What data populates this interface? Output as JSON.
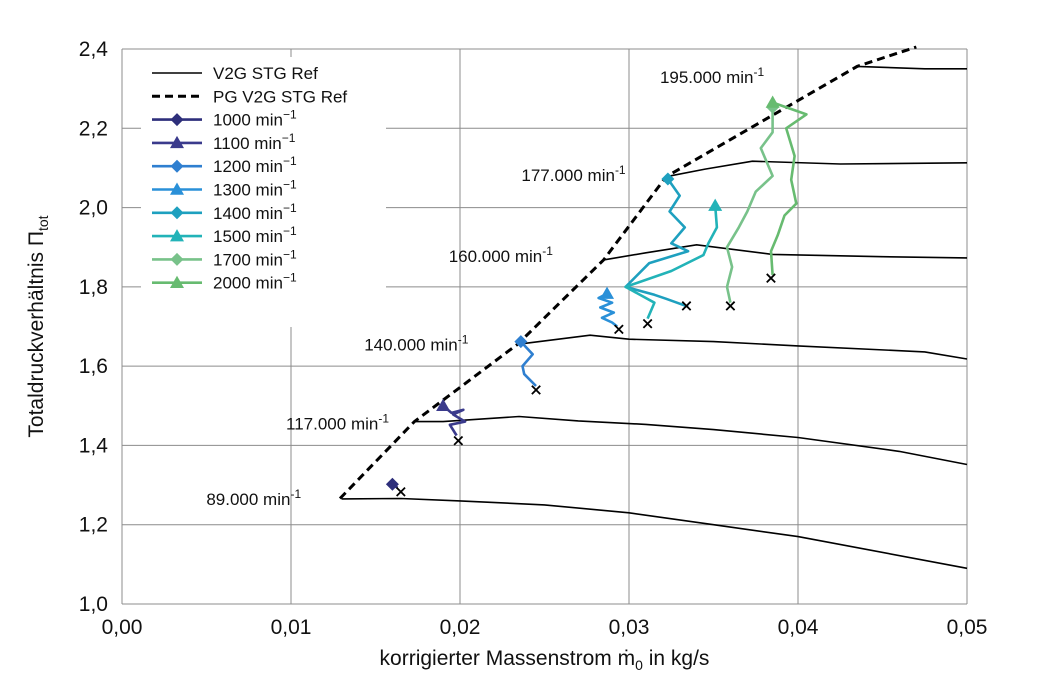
{
  "chart_data": {
    "type": "line",
    "xlabel": "korrigierter Massenstrom ṁ",
    "xlabel_sub": "0",
    "xlabel_suffix": " in kg/s",
    "ylabel": "Totaldruckverhältnis Π",
    "ylabel_sub": "tot",
    "xlim": [
      0,
      0.05
    ],
    "ylim": [
      1.0,
      2.4
    ],
    "xticks": [
      0,
      0.01,
      0.02,
      0.03,
      0.04,
      0.05
    ],
    "yticks": [
      1.0,
      1.2,
      1.4,
      1.6,
      1.8,
      2.0,
      2.2,
      2.4
    ],
    "xtick_labels": [
      "0,00",
      "0,01",
      "0,02",
      "0,03",
      "0,04",
      "0,05"
    ],
    "ytick_labels": [
      "1,0",
      "1,2",
      "1,4",
      "1,6",
      "1,8",
      "2,0",
      "2,2",
      "2,4"
    ],
    "grid": true,
    "legend_position": "top-left",
    "reference_lines": [
      {
        "speed": "89.000",
        "points": [
          [
            0.013,
            1.265
          ],
          [
            0.0165,
            1.266
          ],
          [
            0.02,
            1.26
          ],
          [
            0.025,
            1.25
          ],
          [
            0.03,
            1.23
          ],
          [
            0.035,
            1.2
          ],
          [
            0.04,
            1.17
          ],
          [
            0.05,
            1.09
          ]
        ]
      },
      {
        "speed": "117.000",
        "points": [
          [
            0.0173,
            1.46
          ],
          [
            0.019,
            1.46
          ],
          [
            0.0235,
            1.473
          ],
          [
            0.027,
            1.462
          ],
          [
            0.031,
            1.453
          ],
          [
            0.035,
            1.44
          ],
          [
            0.04,
            1.42
          ],
          [
            0.046,
            1.385
          ],
          [
            0.05,
            1.352
          ]
        ]
      },
      {
        "speed": "140.000",
        "points": [
          [
            0.0234,
            1.655
          ],
          [
            0.0277,
            1.678
          ],
          [
            0.03,
            1.668
          ],
          [
            0.035,
            1.662
          ],
          [
            0.04,
            1.651
          ],
          [
            0.0475,
            1.636
          ],
          [
            0.05,
            1.618
          ]
        ]
      },
      {
        "speed": "160.000",
        "points": [
          [
            0.0285,
            1.868
          ],
          [
            0.031,
            1.886
          ],
          [
            0.034,
            1.906
          ],
          [
            0.0385,
            1.882
          ],
          [
            0.045,
            1.876
          ],
          [
            0.05,
            1.873
          ]
        ]
      },
      {
        "speed": "177.000",
        "points": [
          [
            0.0322,
            2.078
          ],
          [
            0.0345,
            2.097
          ],
          [
            0.0373,
            2.117
          ],
          [
            0.0425,
            2.11
          ],
          [
            0.05,
            2.113
          ]
        ]
      },
      {
        "speed": "195.000",
        "points": [
          [
            0.0435,
            2.356
          ],
          [
            0.0475,
            2.35
          ],
          [
            0.05,
            2.35
          ]
        ]
      }
    ],
    "surge_line": [
      [
        0.0129,
        1.266
      ],
      [
        0.0173,
        1.46
      ],
      [
        0.0234,
        1.655
      ],
      [
        0.0285,
        1.868
      ],
      [
        0.0322,
        2.078
      ],
      [
        0.0435,
        2.356
      ],
      [
        0.047,
        2.405
      ]
    ],
    "speed_labels": [
      {
        "text": "89.000 min",
        "sup": "-1",
        "x": 0.0106,
        "y": 1.265
      },
      {
        "text": "117.000 min",
        "sup": "-1",
        "x": 0.0158,
        "y": 1.455
      },
      {
        "text": "140.000 min",
        "sup": "-1",
        "x": 0.0205,
        "y": 1.655
      },
      {
        "text": "160.000 min",
        "sup": "-1",
        "x": 0.0255,
        "y": 1.878
      },
      {
        "text": "177.000 min",
        "sup": "-1",
        "x": 0.0298,
        "y": 2.082
      },
      {
        "text": "195.000 min",
        "sup": "-1",
        "x": 0.038,
        "y": 2.33
      }
    ],
    "series": [
      {
        "name": "1000 min",
        "sup": "−1",
        "color": "#2e2f7b",
        "marker": "diamond",
        "points": [
          [
            0.016,
            1.302
          ],
          [
            0.0163,
            1.293
          ]
        ]
      },
      {
        "name": "1100 min",
        "sup": "−1",
        "color": "#3a3a8c",
        "marker": "triangle",
        "points": [
          [
            0.019,
            1.5
          ],
          [
            0.0195,
            1.482
          ],
          [
            0.0202,
            1.49
          ],
          [
            0.0196,
            1.478
          ],
          [
            0.0203,
            1.46
          ],
          [
            0.0194,
            1.452
          ],
          [
            0.0198,
            1.425
          ]
        ]
      },
      {
        "name": "1200 min",
        "sup": "−1",
        "color": "#2f7fd0",
        "marker": "diamond",
        "points": [
          [
            0.0236,
            1.662
          ],
          [
            0.0243,
            1.63
          ],
          [
            0.0237,
            1.6
          ],
          [
            0.0238,
            1.58
          ],
          [
            0.0245,
            1.55
          ]
        ]
      },
      {
        "name": "1300 min",
        "sup": "−1",
        "color": "#2a90d8",
        "marker": "triangle",
        "points": [
          [
            0.0287,
            1.783
          ],
          [
            0.0282,
            1.772
          ],
          [
            0.029,
            1.76
          ],
          [
            0.0283,
            1.748
          ],
          [
            0.0291,
            1.735
          ],
          [
            0.0284,
            1.722
          ],
          [
            0.029,
            1.71
          ],
          [
            0.0293,
            1.7
          ]
        ]
      },
      {
        "name": "1400 min",
        "sup": "−1",
        "color": "#1ea0bf",
        "marker": "diamond",
        "points": [
          [
            0.0323,
            2.072
          ],
          [
            0.033,
            2.03
          ],
          [
            0.0324,
            1.99
          ],
          [
            0.0333,
            1.95
          ],
          [
            0.0325,
            1.91
          ],
          [
            0.0335,
            1.89
          ],
          [
            0.0312,
            1.86
          ],
          [
            0.0298,
            1.8
          ],
          [
            0.0315,
            1.78
          ],
          [
            0.0322,
            1.77
          ],
          [
            0.0335,
            1.75
          ]
        ]
      },
      {
        "name": "1500 min",
        "sup": "−1",
        "color": "#22b3b8",
        "marker": "triangle",
        "points": [
          [
            0.0351,
            2.005
          ],
          [
            0.0352,
            1.95
          ],
          [
            0.0347,
            1.91
          ],
          [
            0.0344,
            1.88
          ],
          [
            0.0325,
            1.84
          ],
          [
            0.0298,
            1.8
          ],
          [
            0.0315,
            1.76
          ],
          [
            0.0311,
            1.72
          ]
        ]
      },
      {
        "name": "1700 min",
        "sup": "−1",
        "color": "#78c28a",
        "marker": "diamond",
        "points": [
          [
            0.0385,
            2.253
          ],
          [
            0.0385,
            2.19
          ],
          [
            0.0378,
            2.15
          ],
          [
            0.0385,
            2.08
          ],
          [
            0.0375,
            2.04
          ],
          [
            0.037,
            1.99
          ],
          [
            0.0365,
            1.95
          ],
          [
            0.0358,
            1.9
          ],
          [
            0.0361,
            1.85
          ],
          [
            0.0358,
            1.8
          ],
          [
            0.036,
            1.76
          ]
        ]
      },
      {
        "name": "2000 min",
        "sup": "−1",
        "color": "#67bb70",
        "marker": "triangle",
        "points": [
          [
            0.0385,
            2.265
          ],
          [
            0.0405,
            2.235
          ],
          [
            0.0393,
            2.2
          ],
          [
            0.0398,
            2.13
          ],
          [
            0.0396,
            2.07
          ],
          [
            0.0399,
            2.01
          ],
          [
            0.0392,
            1.98
          ],
          [
            0.0388,
            1.93
          ],
          [
            0.0384,
            1.89
          ],
          [
            0.0385,
            1.83
          ]
        ]
      }
    ],
    "cross_markers": [
      [
        0.0165,
        1.283
      ],
      [
        0.0199,
        1.412
      ],
      [
        0.0245,
        1.54
      ],
      [
        0.0294,
        1.693
      ],
      [
        0.0311,
        1.707
      ],
      [
        0.0334,
        1.752
      ],
      [
        0.036,
        1.752
      ],
      [
        0.0384,
        1.822
      ]
    ],
    "legend": {
      "ref_label": "V2G STG Ref",
      "surge_label": "PG V2G STG Ref"
    }
  }
}
